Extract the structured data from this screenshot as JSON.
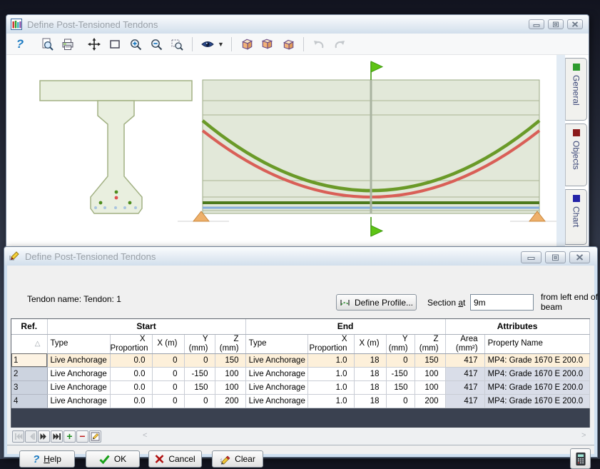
{
  "top_window": {
    "title": "Define Post-Tensioned Tendons",
    "toolbar_icons": [
      "help",
      "print-preview",
      "print",
      "pan",
      "zoom-window",
      "zoom-in",
      "zoom-out",
      "zoom-extents",
      "visibility",
      "copy-slice-forward",
      "copy-slice-here",
      "copy-slice-back",
      "undo",
      "redo"
    ],
    "side_tabs": [
      {
        "label": "General",
        "color": "#2d9b2d"
      },
      {
        "label": "Objects",
        "color": "#8b1a1a"
      },
      {
        "label": "Chart",
        "color": "#2424a8"
      }
    ]
  },
  "dialog": {
    "title": "Define Post-Tensioned Tendons",
    "tendon_name": "Tendon name: Tendon: 1",
    "define_profile": "Define Profile...",
    "section_at": {
      "pre": "Section ",
      "u": "a",
      "post": "t"
    },
    "section_value": "9m",
    "section_suffix": "from left end of beam",
    "table": {
      "group_headers": {
        "ref": "Ref.",
        "start": "Start",
        "end": "End",
        "attributes": "Attributes"
      },
      "sort_glyph": "△",
      "columns": [
        "Type",
        "X Proportion",
        "X (m)",
        "Y (mm)",
        "Z (mm)",
        "Type",
        "X Proportion",
        "X (m)",
        "Y (mm)",
        "Z (mm)",
        "Area (mm²)",
        "Property Name"
      ],
      "rows": [
        {
          "ref": "1",
          "cells": [
            "Live Anchorage",
            "0.0",
            "0",
            "0",
            "150",
            "Live Anchorage",
            "1.0",
            "18",
            "0",
            "150",
            "417",
            "MP4: Grade 1670 E 200.0"
          ]
        },
        {
          "ref": "2",
          "cells": [
            "Live Anchorage",
            "0.0",
            "0",
            "-150",
            "100",
            "Live Anchorage",
            "1.0",
            "18",
            "-150",
            "100",
            "417",
            "MP4: Grade 1670 E 200.0"
          ]
        },
        {
          "ref": "3",
          "cells": [
            "Live Anchorage",
            "0.0",
            "0",
            "150",
            "100",
            "Live Anchorage",
            "1.0",
            "18",
            "150",
            "100",
            "417",
            "MP4: Grade 1670 E 200.0"
          ]
        },
        {
          "ref": "4",
          "cells": [
            "Live Anchorage",
            "0.0",
            "0",
            "0",
            "200",
            "Live Anchorage",
            "1.0",
            "18",
            "0",
            "200",
            "417",
            "MP4: Grade 1670 E 200.0"
          ]
        }
      ]
    },
    "buttons": {
      "help": {
        "u": "H",
        "rest": "elp"
      },
      "ok": "OK",
      "cancel": "Cancel",
      "clear": "Clear"
    }
  },
  "colors": {
    "selected_row": "#fdf0da",
    "readonly_cell": "#d9dde8",
    "tendon_green": "#6a9a28",
    "tendon_red": "#d95f57",
    "tendon_blue": "#85aede",
    "support_orange": "#eeb06a"
  }
}
